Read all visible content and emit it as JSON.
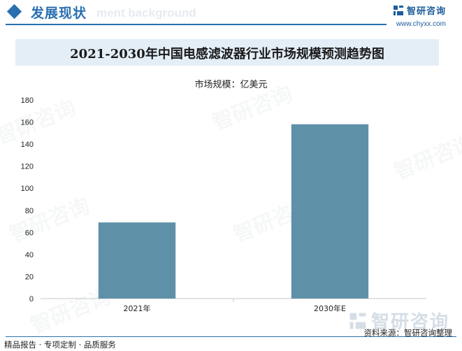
{
  "header": {
    "section_title": "发展现状",
    "section_subtitle": "ment background",
    "brand_name": "智研咨询",
    "brand_url": "www.chyxx.com"
  },
  "colors": {
    "accent": "#2a6fb0",
    "bar": "#5e91a8",
    "title_band": "#e3eef7"
  },
  "watermark_text": "智研咨询",
  "chart_data": {
    "type": "bar",
    "title": "2021-2030年中国电感滤波器行业市场规模预测趋势图",
    "unit_label": "市场规模：亿美元",
    "categories": [
      "2021年",
      "2030年E"
    ],
    "values": [
      69,
      158
    ],
    "ylim": [
      0,
      180
    ],
    "yticks": [
      0,
      20,
      40,
      60,
      80,
      100,
      120,
      140,
      160,
      180
    ],
    "grid": false
  },
  "footer": {
    "left": "精品报告 · 专项定制 · 品质服务",
    "source": "资料来源：智研咨询整理"
  }
}
